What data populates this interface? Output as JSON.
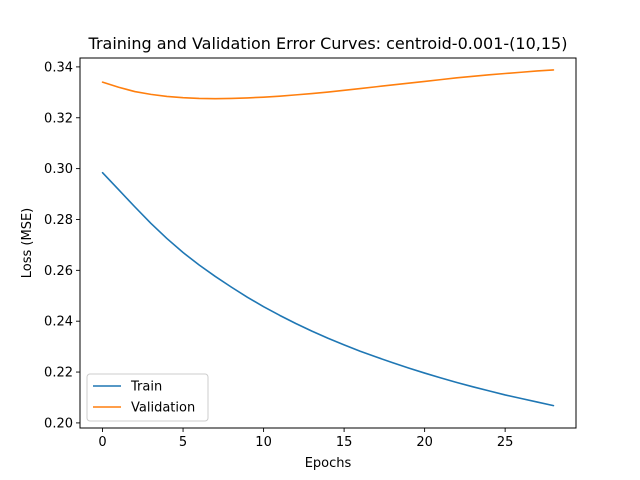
{
  "chart_data": {
    "type": "line",
    "title": "Training and Validation Error Curves: centroid-0.001-(10,15)",
    "xlabel": "Epochs",
    "ylabel": "Loss (MSE)",
    "xlim": [
      -1.4,
      29.4
    ],
    "ylim": [
      0.198,
      0.3435
    ],
    "xticks": [
      0,
      5,
      10,
      15,
      20,
      25
    ],
    "yticks": [
      0.2,
      0.22,
      0.24,
      0.26,
      0.28,
      0.3,
      0.32,
      0.34
    ],
    "grid": false,
    "legend_position": "lower-left",
    "x": [
      0,
      1,
      2,
      3,
      4,
      5,
      6,
      7,
      8,
      9,
      10,
      11,
      12,
      13,
      14,
      15,
      16,
      17,
      18,
      19,
      20,
      21,
      22,
      23,
      24,
      25,
      26,
      27,
      28
    ],
    "series": [
      {
        "name": "Train",
        "color": "#1f77b4",
        "values": [
          0.2984,
          0.2917,
          0.285,
          0.2785,
          0.2725,
          0.267,
          0.2621,
          0.2576,
          0.2534,
          0.2494,
          0.2457,
          0.2423,
          0.2391,
          0.2361,
          0.2333,
          0.2307,
          0.2282,
          0.2259,
          0.2237,
          0.2216,
          0.2196,
          0.2177,
          0.2159,
          0.2142,
          0.2126,
          0.211,
          0.2096,
          0.2082,
          0.2068
        ]
      },
      {
        "name": "Validation",
        "color": "#ff7f0e",
        "values": [
          0.334,
          0.332,
          0.3303,
          0.3292,
          0.3284,
          0.3279,
          0.3276,
          0.3275,
          0.3276,
          0.3278,
          0.3281,
          0.3285,
          0.329,
          0.3295,
          0.3301,
          0.3308,
          0.3315,
          0.3322,
          0.3329,
          0.3336,
          0.3343,
          0.335,
          0.3357,
          0.3363,
          0.3369,
          0.3374,
          0.3379,
          0.3384,
          0.3388
        ]
      }
    ]
  }
}
